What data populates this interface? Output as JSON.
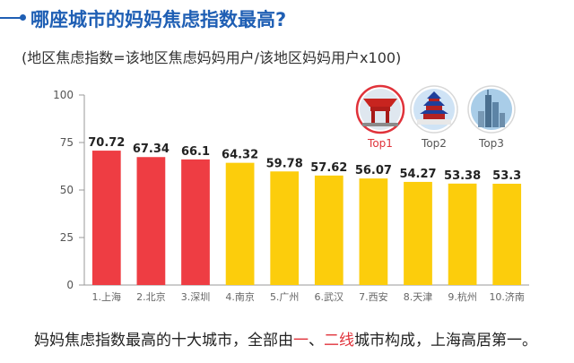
{
  "header": {
    "title": "哪座城市的妈妈焦虑指数最高?",
    "subtitle": "(地区焦虑指数=该地区焦虑妈妈用户/该地区妈妈用户x100)"
  },
  "caption": {
    "part1": "妈妈焦虑指数最高的十大城市，全部由",
    "hl1": "一",
    "sep": "、",
    "hl2": "二线",
    "part2": "城市构成，上海高居第一。"
  },
  "top_badges": [
    {
      "label": "Top1",
      "icon": "shanghai-expo-pavilion-icon",
      "label_color": "#e0323a",
      "ring_color": "#e0323a"
    },
    {
      "label": "Top2",
      "icon": "temple-of-heaven-icon",
      "label_color": "#555555",
      "ring_color": "#d8d8d8"
    },
    {
      "label": "Top3",
      "icon": "shenzhen-skyscraper-icon",
      "label_color": "#555555",
      "ring_color": "#d8d8d8"
    }
  ],
  "colors": {
    "top3": "#ee3d43",
    "others": "#fccd0c",
    "axis": "#999999",
    "grid": "#e6e6e6"
  },
  "chart_data": {
    "type": "bar",
    "categories": [
      "1.上海",
      "2.北京",
      "3.深圳",
      "4.南京",
      "5.广州",
      "6.武汉",
      "7.西安",
      "8.天津",
      "9.杭州",
      "10.济南"
    ],
    "values": [
      70.72,
      67.34,
      66.1,
      64.32,
      59.78,
      57.62,
      56.07,
      54.27,
      53.38,
      53.3
    ],
    "value_labels": [
      "70.72",
      "67.34",
      "66.1",
      "64.32",
      "59.78",
      "57.62",
      "56.07",
      "54.27",
      "53.38",
      "53.3"
    ],
    "ylim": [
      0,
      100
    ],
    "yticks": [
      0,
      25,
      50,
      75,
      100
    ],
    "highlighted_count": 3,
    "grid": false
  }
}
